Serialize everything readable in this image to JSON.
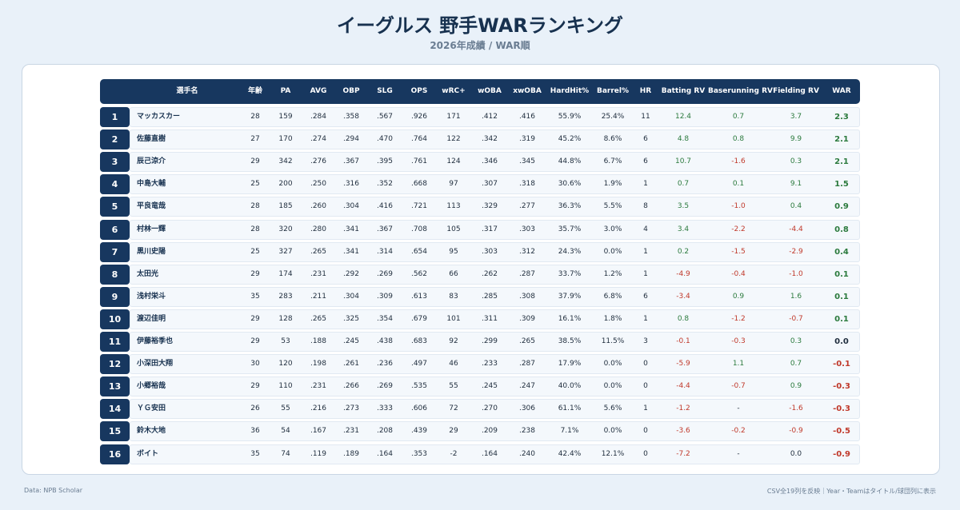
{
  "title": "イーグルス 野手WARランキング",
  "subtitle": "2026年成績 / WAR順",
  "colors": {
    "header_bg": "#17375f",
    "positive": "#2b7a3d",
    "negative": "#c0392b"
  },
  "columns": [
    "選手名",
    "年齢",
    "PA",
    "AVG",
    "OBP",
    "SLG",
    "OPS",
    "wRC+",
    "wOBA",
    "xwOBA",
    "HardHit%",
    "Barrel%",
    "HR",
    "Batting RV",
    "Baserunning RV",
    "Fielding RV",
    "WAR"
  ],
  "rows": [
    {
      "rank": "1",
      "name": "マッカスカー",
      "age": "28",
      "pa": "159",
      "avg": ".284",
      "obp": ".358",
      "slg": ".567",
      "ops": ".926",
      "wrc": "171",
      "woba": ".412",
      "xwoba": ".416",
      "hardhit": "55.9%",
      "barrel": "25.4%",
      "hr": "11",
      "brv": "12.4",
      "rrv": "0.7",
      "frv": "3.7",
      "war": "2.3"
    },
    {
      "rank": "2",
      "name": "佐藤直樹",
      "age": "27",
      "pa": "170",
      "avg": ".274",
      "obp": ".294",
      "slg": ".470",
      "ops": ".764",
      "wrc": "122",
      "woba": ".342",
      "xwoba": ".319",
      "hardhit": "45.2%",
      "barrel": "8.6%",
      "hr": "6",
      "brv": "4.8",
      "rrv": "0.8",
      "frv": "9.9",
      "war": "2.1"
    },
    {
      "rank": "3",
      "name": "辰己涼介",
      "age": "29",
      "pa": "342",
      "avg": ".276",
      "obp": ".367",
      "slg": ".395",
      "ops": ".761",
      "wrc": "124",
      "woba": ".346",
      "xwoba": ".345",
      "hardhit": "44.8%",
      "barrel": "6.7%",
      "hr": "6",
      "brv": "10.7",
      "rrv": "-1.6",
      "frv": "0.3",
      "war": "2.1"
    },
    {
      "rank": "4",
      "name": "中島大輔",
      "age": "25",
      "pa": "200",
      "avg": ".250",
      "obp": ".316",
      "slg": ".352",
      "ops": ".668",
      "wrc": "97",
      "woba": ".307",
      "xwoba": ".318",
      "hardhit": "30.6%",
      "barrel": "1.9%",
      "hr": "1",
      "brv": "0.7",
      "rrv": "0.1",
      "frv": "9.1",
      "war": "1.5"
    },
    {
      "rank": "5",
      "name": "平良竜哉",
      "age": "28",
      "pa": "185",
      "avg": ".260",
      "obp": ".304",
      "slg": ".416",
      "ops": ".721",
      "wrc": "113",
      "woba": ".329",
      "xwoba": ".277",
      "hardhit": "36.3%",
      "barrel": "5.5%",
      "hr": "8",
      "brv": "3.5",
      "rrv": "-1.0",
      "frv": "0.4",
      "war": "0.9"
    },
    {
      "rank": "6",
      "name": "村林一輝",
      "age": "28",
      "pa": "320",
      "avg": ".280",
      "obp": ".341",
      "slg": ".367",
      "ops": ".708",
      "wrc": "105",
      "woba": ".317",
      "xwoba": ".303",
      "hardhit": "35.7%",
      "barrel": "3.0%",
      "hr": "4",
      "brv": "3.4",
      "rrv": "-2.2",
      "frv": "-4.4",
      "war": "0.8"
    },
    {
      "rank": "7",
      "name": "黒川史陽",
      "age": "25",
      "pa": "327",
      "avg": ".265",
      "obp": ".341",
      "slg": ".314",
      "ops": ".654",
      "wrc": "95",
      "woba": ".303",
      "xwoba": ".312",
      "hardhit": "24.3%",
      "barrel": "0.0%",
      "hr": "1",
      "brv": "0.2",
      "rrv": "-1.5",
      "frv": "-2.9",
      "war": "0.4"
    },
    {
      "rank": "8",
      "name": "太田光",
      "age": "29",
      "pa": "174",
      "avg": ".231",
      "obp": ".292",
      "slg": ".269",
      "ops": ".562",
      "wrc": "66",
      "woba": ".262",
      "xwoba": ".287",
      "hardhit": "33.7%",
      "barrel": "1.2%",
      "hr": "1",
      "brv": "-4.9",
      "rrv": "-0.4",
      "frv": "-1.0",
      "war": "0.1"
    },
    {
      "rank": "9",
      "name": "浅村栄斗",
      "age": "35",
      "pa": "283",
      "avg": ".211",
      "obp": ".304",
      "slg": ".309",
      "ops": ".613",
      "wrc": "83",
      "woba": ".285",
      "xwoba": ".308",
      "hardhit": "37.9%",
      "barrel": "6.8%",
      "hr": "6",
      "brv": "-3.4",
      "rrv": "0.9",
      "frv": "1.6",
      "war": "0.1"
    },
    {
      "rank": "10",
      "name": "渡辺佳明",
      "age": "29",
      "pa": "128",
      "avg": ".265",
      "obp": ".325",
      "slg": ".354",
      "ops": ".679",
      "wrc": "101",
      "woba": ".311",
      "xwoba": ".309",
      "hardhit": "16.1%",
      "barrel": "1.8%",
      "hr": "1",
      "brv": "0.8",
      "rrv": "-1.2",
      "frv": "-0.7",
      "war": "0.1"
    },
    {
      "rank": "11",
      "name": "伊藤裕季也",
      "age": "29",
      "pa": "53",
      "avg": ".188",
      "obp": ".245",
      "slg": ".438",
      "ops": ".683",
      "wrc": "92",
      "woba": ".299",
      "xwoba": ".265",
      "hardhit": "38.5%",
      "barrel": "11.5%",
      "hr": "3",
      "brv": "-0.1",
      "rrv": "-0.3",
      "frv": "0.3",
      "war": "0.0"
    },
    {
      "rank": "12",
      "name": "小深田大翔",
      "age": "30",
      "pa": "120",
      "avg": ".198",
      "obp": ".261",
      "slg": ".236",
      "ops": ".497",
      "wrc": "46",
      "woba": ".233",
      "xwoba": ".287",
      "hardhit": "17.9%",
      "barrel": "0.0%",
      "hr": "0",
      "brv": "-5.9",
      "rrv": "1.1",
      "frv": "0.7",
      "war": "-0.1"
    },
    {
      "rank": "13",
      "name": "小郷裕哉",
      "age": "29",
      "pa": "110",
      "avg": ".231",
      "obp": ".266",
      "slg": ".269",
      "ops": ".535",
      "wrc": "55",
      "woba": ".245",
      "xwoba": ".247",
      "hardhit": "40.0%",
      "barrel": "0.0%",
      "hr": "0",
      "brv": "-4.4",
      "rrv": "-0.7",
      "frv": "0.9",
      "war": "-0.3"
    },
    {
      "rank": "14",
      "name": "ＹＧ安田",
      "age": "26",
      "pa": "55",
      "avg": ".216",
      "obp": ".273",
      "slg": ".333",
      "ops": ".606",
      "wrc": "72",
      "woba": ".270",
      "xwoba": ".306",
      "hardhit": "61.1%",
      "barrel": "5.6%",
      "hr": "1",
      "brv": "-1.2",
      "rrv": "-",
      "frv": "-1.6",
      "war": "-0.3"
    },
    {
      "rank": "15",
      "name": "鈴木大地",
      "age": "36",
      "pa": "54",
      "avg": ".167",
      "obp": ".231",
      "slg": ".208",
      "ops": ".439",
      "wrc": "29",
      "woba": ".209",
      "xwoba": ".238",
      "hardhit": "7.1%",
      "barrel": "0.0%",
      "hr": "0",
      "brv": "-3.6",
      "rrv": "-0.2",
      "frv": "-0.9",
      "war": "-0.5"
    },
    {
      "rank": "16",
      "name": "ボイト",
      "age": "35",
      "pa": "74",
      "avg": ".119",
      "obp": ".189",
      "slg": ".164",
      "ops": ".353",
      "wrc": "-2",
      "woba": ".164",
      "xwoba": ".240",
      "hardhit": "42.4%",
      "barrel": "12.1%",
      "hr": "0",
      "brv": "-7.2",
      "rrv": "-",
      "frv": "0.0",
      "war": "-0.9"
    }
  ],
  "footer": {
    "source": "Data: NPB Scholar",
    "note": "CSV全19列を反映｜Year・Teamはタイトル/球団列に表示"
  }
}
